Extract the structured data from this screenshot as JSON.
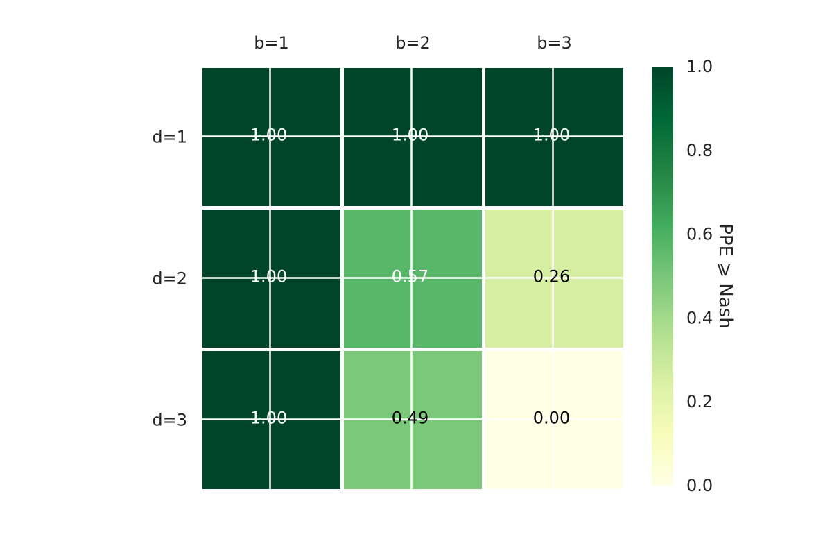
{
  "chart_data": {
    "type": "heatmap",
    "x_categories": [
      "b=1",
      "b=2",
      "b=3"
    ],
    "y_categories": [
      "d=1",
      "d=2",
      "d=3"
    ],
    "values": [
      [
        1.0,
        1.0,
        1.0
      ],
      [
        1.0,
        0.57,
        0.26
      ],
      [
        1.0,
        0.49,
        0.0
      ]
    ],
    "value_labels": [
      [
        "1.00",
        "1.00",
        "1.00"
      ],
      [
        "1.00",
        "0.57",
        "0.26"
      ],
      [
        "1.00",
        "0.49",
        "0.00"
      ]
    ],
    "colormap": "YlGn",
    "vmin": 0.0,
    "vmax": 1.0,
    "x_tick_position": "top",
    "grid": true,
    "colorbar": {
      "label": "PPE ⩾ Nash",
      "ticks": [
        "0.0",
        "0.2",
        "0.4",
        "0.6",
        "0.8",
        "1.0"
      ],
      "tick_values": [
        0.0,
        0.2,
        0.4,
        0.6,
        0.8,
        1.0
      ],
      "position": "right"
    }
  }
}
